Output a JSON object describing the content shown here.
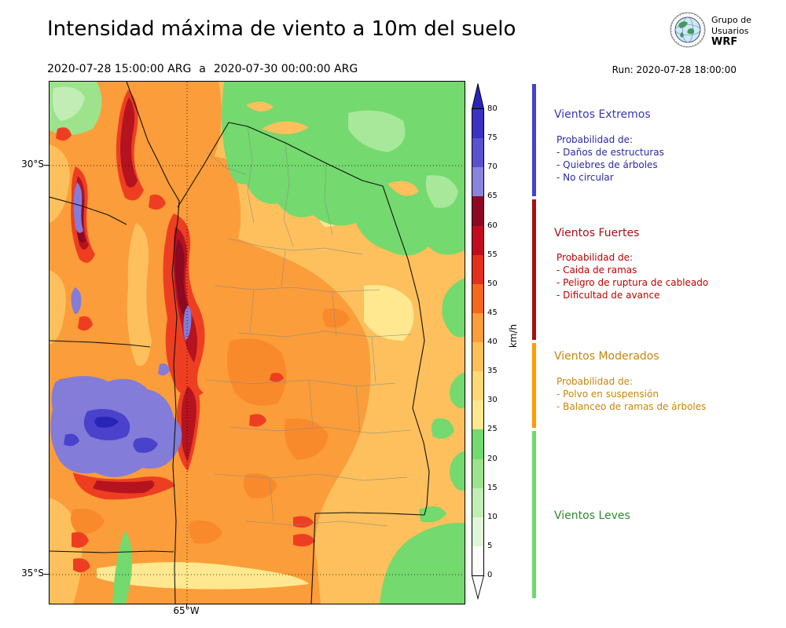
{
  "header": {
    "title": "Intensidad máxima de viento a 10m del suelo",
    "period_start": "2020-07-28 15:00:00 ARG",
    "period_sep": "a",
    "period_end": "2020-07-30 00:00:00 ARG",
    "run": "Run: 2020-07-28 18:00:00",
    "logo": {
      "line1": "Grupo de",
      "line2": "Usuarios",
      "line3": "WRF"
    }
  },
  "map": {
    "lat_ticks": [
      "30°S",
      "35°S"
    ],
    "lon_ticks": [
      "65°W"
    ]
  },
  "colorbar": {
    "unit": "km/h",
    "min": 0,
    "max": 80,
    "ticks": [
      0,
      5,
      10,
      15,
      20,
      25,
      30,
      35,
      40,
      45,
      50,
      55,
      60,
      65,
      70,
      75,
      80
    ],
    "colors": [
      "#fbfdf8",
      "#e0f6da",
      "#c2edb4",
      "#9ce38c",
      "#74d96e",
      "#ffe88f",
      "#fed876",
      "#fdbf58",
      "#fb9d3a",
      "#f4681e",
      "#e3301c",
      "#c10c20",
      "#8c0823",
      "#8a84dc",
      "#5a52cc",
      "#3a32c2"
    ],
    "over_color": "#2a23b8",
    "under_color": "#ffffff"
  },
  "legend": {
    "extremos": {
      "title": "Vientos Extremos",
      "title_color": "#3a35b5",
      "text_color": "#2d28a8",
      "bar_color": "#4640d0",
      "intro": "Probabilidad de:",
      "items": [
        "- Daños de estructuras",
        "- Quiebres de árboles",
        "- No circular"
      ]
    },
    "fuertes": {
      "title": "Vientos Fuertes",
      "title_color": "#a50f15",
      "text_color": "#c00000",
      "bar_color": "#a50f15",
      "intro": "Probabilidad de:",
      "items": [
        "- Caida de ramas",
        "- Peligro de ruptura de cableado",
        "- Dificultad de avance"
      ]
    },
    "moderados": {
      "title": "Vientos Moderados",
      "title_color": "#c8860a",
      "text_color": "#c8860a",
      "bar_color": "#ff9c00",
      "intro": "Probabilidad de:",
      "items": [
        "- Polvo en suspensión",
        "- Balanceo de ramas de árboles"
      ]
    },
    "leves": {
      "title": "Vientos Leves",
      "title_color": "#2e8b2e",
      "text_color": "#2e8b2e",
      "bar_color": "#6cdc6c"
    }
  }
}
